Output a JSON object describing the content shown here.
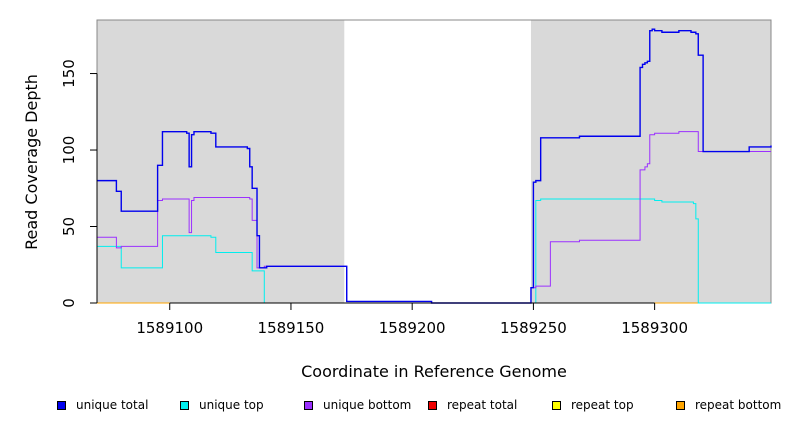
{
  "chart_data": {
    "type": "line",
    "xlabel": "Coordinate in Reference Genome",
    "ylabel": "Read Coverage Depth",
    "xlim": [
      1589070,
      1589348
    ],
    "ylim": [
      0,
      185
    ],
    "x_ticks": [
      1589100,
      1589150,
      1589200,
      1589250,
      1589300
    ],
    "x_tick_labels": [
      "1589100",
      "1589150",
      "1589200",
      "1589250",
      "1589300"
    ],
    "y_ticks": [
      0,
      50,
      100,
      150
    ],
    "y_tick_labels": [
      "0",
      "50",
      "100",
      "150"
    ],
    "shaded_regions": [
      [
        1589070,
        1589172
      ],
      [
        1589249,
        1589348
      ]
    ],
    "shaded_color": "#d9d9d9",
    "legend_position": "bottom",
    "series": [
      {
        "name": "unique total",
        "color": "#0000ee",
        "x": [
          1589070,
          1589076,
          1589078,
          1589080,
          1589093,
          1589095,
          1589097,
          1589107,
          1589108,
          1589109,
          1589110,
          1589117,
          1589119,
          1589132,
          1589133,
          1589134,
          1589136,
          1589137,
          1589139,
          1589140,
          1589172,
          1589173,
          1589207,
          1589208,
          1589248,
          1589249,
          1589250,
          1589251,
          1589253,
          1589257,
          1589268,
          1589269,
          1589293,
          1589294,
          1589295,
          1589296,
          1589297,
          1589298,
          1589299,
          1589300,
          1589302,
          1589303,
          1589304,
          1589309,
          1589310,
          1589311,
          1589314,
          1589315,
          1589316,
          1589317,
          1589318,
          1589320,
          1589338,
          1589339,
          1589348
        ],
        "y": [
          80,
          80,
          73,
          60,
          60,
          90,
          112,
          111,
          89,
          110,
          112,
          111,
          102,
          101,
          89,
          75,
          44,
          23,
          23,
          24,
          24,
          1,
          1,
          0,
          0,
          10,
          79,
          80,
          108,
          108,
          108,
          109,
          109,
          154,
          156,
          157,
          158,
          178,
          179,
          178,
          178,
          177,
          177,
          177,
          178,
          178,
          178,
          177,
          177,
          176,
          162,
          99,
          99,
          102,
          103
        ]
      },
      {
        "name": "unique top",
        "color": "#00eeee",
        "x": [
          1589070,
          1589078,
          1589080,
          1589095,
          1589097,
          1589117,
          1589119,
          1589134,
          1589136,
          1589137,
          1589139,
          1589140,
          1589249,
          1589251,
          1589253,
          1589297,
          1589300,
          1589302,
          1589303,
          1589314,
          1589316,
          1589317,
          1589318,
          1589348
        ],
        "y": [
          37,
          37,
          23,
          23,
          44,
          43,
          33,
          21,
          21,
          21,
          0,
          0,
          0,
          67,
          68,
          68,
          67,
          67,
          66,
          66,
          65,
          55,
          0,
          0
        ]
      },
      {
        "name": "unique bottom",
        "color": "#9b30ff",
        "x": [
          1589070,
          1589076,
          1589078,
          1589080,
          1589093,
          1589095,
          1589097,
          1589107,
          1589108,
          1589109,
          1589110,
          1589131,
          1589133,
          1589134,
          1589136,
          1589137,
          1589139,
          1589140,
          1589172,
          1589173,
          1589207,
          1589208,
          1589248,
          1589249,
          1589251,
          1589253,
          1589257,
          1589268,
          1589269,
          1589293,
          1589294,
          1589296,
          1589297,
          1589298,
          1589300,
          1589309,
          1589310,
          1589317,
          1589318,
          1589348
        ],
        "y": [
          43,
          43,
          36,
          37,
          37,
          67,
          68,
          68,
          46,
          67,
          69,
          69,
          68,
          54,
          23,
          23,
          24,
          24,
          24,
          1,
          1,
          0,
          0,
          10,
          11,
          11,
          40,
          40,
          41,
          41,
          87,
          89,
          91,
          110,
          111,
          111,
          112,
          112,
          99,
          99
        ]
      },
      {
        "name": "repeat total",
        "color": "#ee0000",
        "x": [
          1589070,
          1589348
        ],
        "y": [
          0,
          0
        ]
      },
      {
        "name": "repeat top",
        "color": "#ffff00",
        "x": [
          1589070,
          1589348
        ],
        "y": [
          0,
          0
        ]
      },
      {
        "name": "repeat bottom",
        "color": "#ffa500",
        "x": [
          1589070,
          1589348
        ],
        "y": [
          0,
          0
        ]
      }
    ]
  }
}
